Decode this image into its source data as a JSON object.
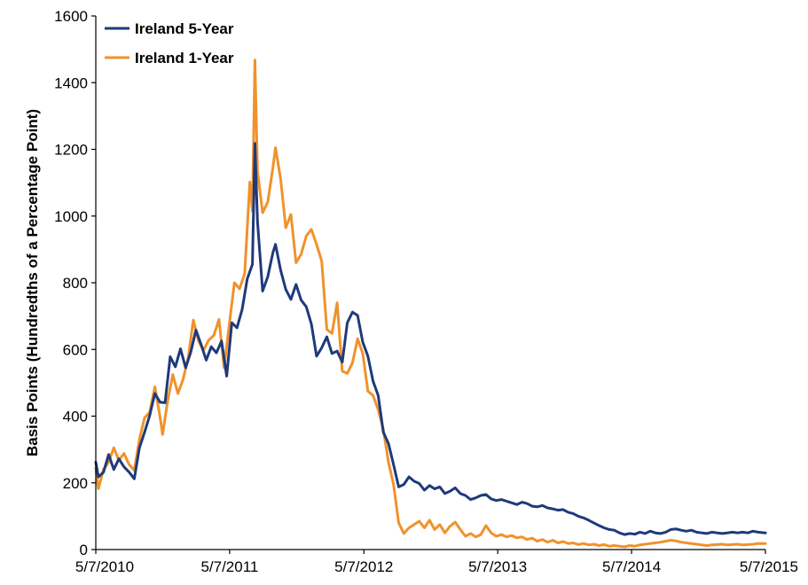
{
  "chart_data": {
    "type": "line",
    "title": "",
    "xlabel": "",
    "ylabel": "Basis Points (Hundredths of a Percentage Point)",
    "ylim": [
      0,
      1600
    ],
    "y_ticks": [
      "0",
      "200",
      "400",
      "600",
      "800",
      "1000",
      "1200",
      "1400",
      "1600"
    ],
    "xlim": [
      "5/7/2010",
      "5/7/2015"
    ],
    "x_ticks": [
      "5/7/2010",
      "5/7/2011",
      "5/7/2012",
      "5/7/2013",
      "5/7/2014",
      "5/7/2015"
    ],
    "grid": false,
    "legend_position": "top-left",
    "series": [
      {
        "name": "Ireland 5-Year",
        "color": "#1f3a7a",
        "points": [
          [
            "5/7/2010",
            262
          ],
          [
            "5/14/2010",
            218
          ],
          [
            "5/28/2010",
            232
          ],
          [
            "6/11/2010",
            285
          ],
          [
            "6/25/2010",
            240
          ],
          [
            "7/9/2010",
            272
          ],
          [
            "7/23/2010",
            248
          ],
          [
            "8/6/2010",
            232
          ],
          [
            "8/20/2010",
            212
          ],
          [
            "9/3/2010",
            305
          ],
          [
            "9/17/2010",
            352
          ],
          [
            "10/1/2010",
            402
          ],
          [
            "10/15/2010",
            468
          ],
          [
            "10/29/2010",
            442
          ],
          [
            "11/12/2010",
            440
          ],
          [
            "11/26/2010",
            578
          ],
          [
            "12/10/2010",
            548
          ],
          [
            "12/24/2010",
            602
          ],
          [
            "1/7/2011",
            545
          ],
          [
            "1/21/2011",
            592
          ],
          [
            "2/4/2011",
            658
          ],
          [
            "2/18/2011",
            615
          ],
          [
            "3/4/2011",
            568
          ],
          [
            "3/18/2011",
            608
          ],
          [
            "4/1/2011",
            590
          ],
          [
            "4/15/2011",
            625
          ],
          [
            "4/29/2011",
            520
          ],
          [
            "5/13/2011",
            680
          ],
          [
            "5/27/2011",
            665
          ],
          [
            "6/10/2011",
            720
          ],
          [
            "6/24/2011",
            812
          ],
          [
            "7/8/2011",
            855
          ],
          [
            "7/15/2011",
            1218
          ],
          [
            "7/22/2011",
            985
          ],
          [
            "8/5/2011",
            775
          ],
          [
            "8/19/2011",
            818
          ],
          [
            "9/2/2011",
            890
          ],
          [
            "9/9/2011",
            915
          ],
          [
            "9/23/2011",
            838
          ],
          [
            "10/7/2011",
            780
          ],
          [
            "10/21/2011",
            750
          ],
          [
            "11/4/2011",
            795
          ],
          [
            "11/18/2011",
            748
          ],
          [
            "12/2/2011",
            728
          ],
          [
            "12/16/2011",
            676
          ],
          [
            "12/30/2011",
            580
          ],
          [
            "1/13/2012",
            605
          ],
          [
            "1/27/2012",
            638
          ],
          [
            "2/10/2012",
            588
          ],
          [
            "2/24/2012",
            595
          ],
          [
            "3/9/2012",
            562
          ],
          [
            "3/23/2012",
            680
          ],
          [
            "4/6/2012",
            712
          ],
          [
            "4/20/2012",
            702
          ],
          [
            "5/4/2012",
            622
          ],
          [
            "5/18/2012",
            580
          ],
          [
            "6/1/2012",
            505
          ],
          [
            "6/15/2012",
            462
          ],
          [
            "6/29/2012",
            352
          ],
          [
            "7/13/2012",
            318
          ],
          [
            "7/27/2012",
            255
          ],
          [
            "8/10/2012",
            188
          ],
          [
            "8/24/2012",
            195
          ],
          [
            "9/7/2012",
            218
          ],
          [
            "9/21/2012",
            205
          ],
          [
            "10/5/2012",
            198
          ],
          [
            "10/19/2012",
            178
          ],
          [
            "11/2/2012",
            192
          ],
          [
            "11/16/2012",
            182
          ],
          [
            "11/30/2012",
            188
          ],
          [
            "12/14/2012",
            168
          ],
          [
            "12/28/2012",
            175
          ],
          [
            "1/11/2013",
            185
          ],
          [
            "1/25/2013",
            168
          ],
          [
            "2/8/2013",
            162
          ],
          [
            "2/22/2013",
            150
          ],
          [
            "3/8/2013",
            155
          ],
          [
            "3/22/2013",
            162
          ],
          [
            "4/5/2013",
            165
          ],
          [
            "4/19/2013",
            152
          ],
          [
            "5/3/2013",
            147
          ],
          [
            "5/17/2013",
            150
          ],
          [
            "5/31/2013",
            145
          ],
          [
            "6/14/2013",
            140
          ],
          [
            "6/28/2013",
            135
          ],
          [
            "7/12/2013",
            142
          ],
          [
            "7/26/2013",
            138
          ],
          [
            "8/9/2013",
            130
          ],
          [
            "8/23/2013",
            128
          ],
          [
            "9/6/2013",
            132
          ],
          [
            "9/20/2013",
            125
          ],
          [
            "10/4/2013",
            122
          ],
          [
            "10/18/2013",
            118
          ],
          [
            "11/1/2013",
            120
          ],
          [
            "11/15/2013",
            112
          ],
          [
            "11/29/2013",
            108
          ],
          [
            "12/13/2013",
            100
          ],
          [
            "12/27/2013",
            95
          ],
          [
            "1/10/2014",
            88
          ],
          [
            "1/24/2014",
            80
          ],
          [
            "2/7/2014",
            72
          ],
          [
            "2/21/2014",
            65
          ],
          [
            "3/7/2014",
            60
          ],
          [
            "3/21/2014",
            58
          ],
          [
            "4/4/2014",
            50
          ],
          [
            "4/18/2014",
            45
          ],
          [
            "5/2/2014",
            48
          ],
          [
            "5/16/2014",
            46
          ],
          [
            "5/30/2014",
            52
          ],
          [
            "6/13/2014",
            48
          ],
          [
            "6/27/2014",
            55
          ],
          [
            "7/11/2014",
            50
          ],
          [
            "7/25/2014",
            48
          ],
          [
            "8/8/2014",
            52
          ],
          [
            "8/22/2014",
            60
          ],
          [
            "9/5/2014",
            62
          ],
          [
            "9/19/2014",
            58
          ],
          [
            "10/3/2014",
            55
          ],
          [
            "10/17/2014",
            58
          ],
          [
            "10/31/2014",
            52
          ],
          [
            "11/14/2014",
            50
          ],
          [
            "11/28/2014",
            48
          ],
          [
            "12/12/2014",
            52
          ],
          [
            "12/26/2014",
            50
          ],
          [
            "1/9/2015",
            48
          ],
          [
            "1/23/2015",
            50
          ],
          [
            "2/6/2015",
            52
          ],
          [
            "2/20/2015",
            50
          ],
          [
            "3/6/2015",
            52
          ],
          [
            "3/20/2015",
            50
          ],
          [
            "4/3/2015",
            55
          ],
          [
            "4/17/2015",
            52
          ],
          [
            "5/7/2015",
            50
          ]
        ]
      },
      {
        "name": "Ireland 1-Year",
        "color": "#f0922b",
        "points": [
          [
            "5/7/2010",
            245
          ],
          [
            "5/14/2010",
            182
          ],
          [
            "5/28/2010",
            240
          ],
          [
            "6/11/2010",
            262
          ],
          [
            "6/25/2010",
            305
          ],
          [
            "7/9/2010",
            268
          ],
          [
            "7/23/2010",
            288
          ],
          [
            "8/6/2010",
            255
          ],
          [
            "8/20/2010",
            238
          ],
          [
            "9/3/2010",
            330
          ],
          [
            "9/17/2010",
            395
          ],
          [
            "10/1/2010",
            412
          ],
          [
            "10/15/2010",
            488
          ],
          [
            "10/29/2010",
            398
          ],
          [
            "11/5/2010",
            345
          ],
          [
            "11/19/2010",
            445
          ],
          [
            "12/3/2010",
            525
          ],
          [
            "12/17/2010",
            468
          ],
          [
            "12/31/2010",
            510
          ],
          [
            "1/14/2011",
            575
          ],
          [
            "1/28/2011",
            688
          ],
          [
            "2/11/2011",
            625
          ],
          [
            "2/25/2011",
            598
          ],
          [
            "3/11/2011",
            628
          ],
          [
            "3/25/2011",
            642
          ],
          [
            "4/8/2011",
            690
          ],
          [
            "4/22/2011",
            545
          ],
          [
            "5/6/2011",
            675
          ],
          [
            "5/20/2011",
            800
          ],
          [
            "6/3/2011",
            782
          ],
          [
            "6/17/2011",
            828
          ],
          [
            "7/1/2011",
            1102
          ],
          [
            "7/8/2011",
            1015
          ],
          [
            "7/15/2011",
            1468
          ],
          [
            "7/22/2011",
            1135
          ],
          [
            "8/5/2011",
            1010
          ],
          [
            "8/19/2011",
            1042
          ],
          [
            "9/2/2011",
            1145
          ],
          [
            "9/9/2011",
            1205
          ],
          [
            "9/23/2011",
            1112
          ],
          [
            "10/7/2011",
            965
          ],
          [
            "10/21/2011",
            1005
          ],
          [
            "11/4/2011",
            860
          ],
          [
            "11/18/2011",
            885
          ],
          [
            "12/2/2011",
            940
          ],
          [
            "12/16/2011",
            960
          ],
          [
            "12/30/2011",
            915
          ],
          [
            "1/13/2012",
            865
          ],
          [
            "1/27/2012",
            660
          ],
          [
            "2/10/2012",
            648
          ],
          [
            "2/24/2012",
            740
          ],
          [
            "3/9/2012",
            535
          ],
          [
            "3/23/2012",
            528
          ],
          [
            "4/6/2012",
            560
          ],
          [
            "4/20/2012",
            632
          ],
          [
            "5/4/2012",
            588
          ],
          [
            "5/18/2012",
            475
          ],
          [
            "6/1/2012",
            462
          ],
          [
            "6/15/2012",
            420
          ],
          [
            "6/29/2012",
            360
          ],
          [
            "7/13/2012",
            262
          ],
          [
            "7/27/2012",
            195
          ],
          [
            "8/10/2012",
            80
          ],
          [
            "8/24/2012",
            48
          ],
          [
            "9/7/2012",
            65
          ],
          [
            "9/21/2012",
            75
          ],
          [
            "10/5/2012",
            85
          ],
          [
            "10/19/2012",
            65
          ],
          [
            "11/2/2012",
            88
          ],
          [
            "11/16/2012",
            60
          ],
          [
            "11/30/2012",
            75
          ],
          [
            "12/14/2012",
            50
          ],
          [
            "12/28/2012",
            70
          ],
          [
            "1/11/2013",
            82
          ],
          [
            "1/25/2013",
            60
          ],
          [
            "2/8/2013",
            40
          ],
          [
            "2/22/2013",
            48
          ],
          [
            "3/8/2013",
            38
          ],
          [
            "3/22/2013",
            45
          ],
          [
            "4/5/2013",
            72
          ],
          [
            "4/19/2013",
            50
          ],
          [
            "5/3/2013",
            40
          ],
          [
            "5/17/2013",
            45
          ],
          [
            "5/31/2013",
            38
          ],
          [
            "6/14/2013",
            42
          ],
          [
            "6/28/2013",
            35
          ],
          [
            "7/12/2013",
            38
          ],
          [
            "7/26/2013",
            30
          ],
          [
            "8/9/2013",
            34
          ],
          [
            "8/23/2013",
            25
          ],
          [
            "9/6/2013",
            30
          ],
          [
            "9/20/2013",
            22
          ],
          [
            "10/4/2013",
            28
          ],
          [
            "10/18/2013",
            20
          ],
          [
            "11/1/2013",
            24
          ],
          [
            "11/15/2013",
            18
          ],
          [
            "11/29/2013",
            20
          ],
          [
            "12/13/2013",
            15
          ],
          [
            "12/27/2013",
            18
          ],
          [
            "1/10/2014",
            14
          ],
          [
            "1/24/2014",
            16
          ],
          [
            "2/7/2014",
            12
          ],
          [
            "2/21/2014",
            15
          ],
          [
            "3/7/2014",
            10
          ],
          [
            "3/21/2014",
            12
          ],
          [
            "4/4/2014",
            10
          ],
          [
            "4/18/2014",
            8
          ],
          [
            "5/2/2014",
            12
          ],
          [
            "5/16/2014",
            10
          ],
          [
            "5/30/2014",
            14
          ],
          [
            "6/13/2014",
            16
          ],
          [
            "6/27/2014",
            18
          ],
          [
            "7/11/2014",
            20
          ],
          [
            "7/25/2014",
            22
          ],
          [
            "8/8/2014",
            25
          ],
          [
            "8/22/2014",
            28
          ],
          [
            "9/5/2014",
            26
          ],
          [
            "9/19/2014",
            22
          ],
          [
            "10/3/2014",
            20
          ],
          [
            "10/17/2014",
            18
          ],
          [
            "10/31/2014",
            16
          ],
          [
            "11/14/2014",
            14
          ],
          [
            "11/28/2014",
            12
          ],
          [
            "12/12/2014",
            14
          ],
          [
            "12/26/2014",
            15
          ],
          [
            "1/9/2015",
            16
          ],
          [
            "1/23/2015",
            14
          ],
          [
            "2/6/2015",
            15
          ],
          [
            "2/20/2015",
            16
          ],
          [
            "3/6/2015",
            14
          ],
          [
            "3/20/2015",
            15
          ],
          [
            "4/3/2015",
            16
          ],
          [
            "4/17/2015",
            18
          ],
          [
            "5/7/2015",
            18
          ]
        ]
      }
    ]
  }
}
